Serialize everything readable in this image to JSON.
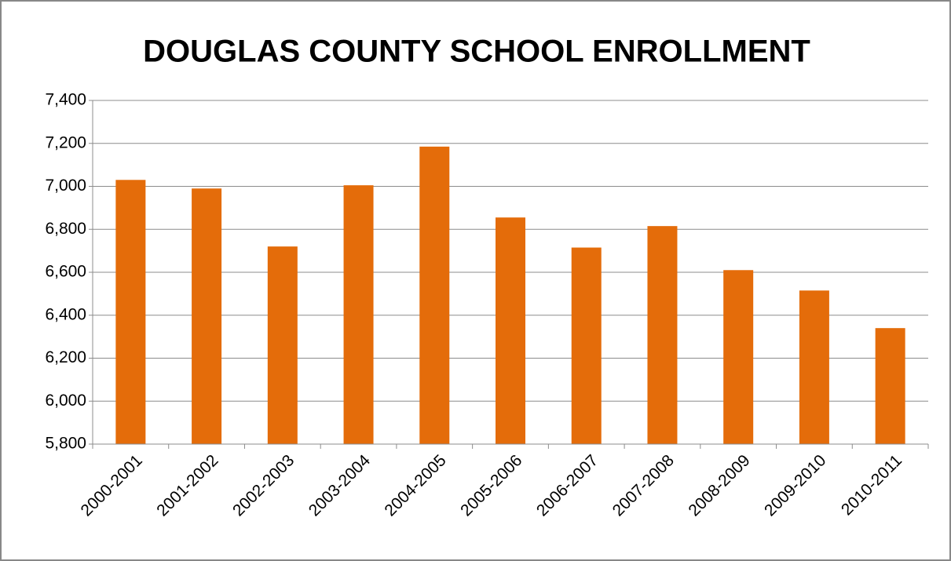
{
  "chart_data": {
    "type": "bar",
    "title": "DOUGLAS COUNTY SCHOOL ENROLLMENT",
    "categories": [
      "2000-2001",
      "2001-2002",
      "2002-2003",
      "2003-2004",
      "2004-2005",
      "2005-2006",
      "2006-2007",
      "2007-2008",
      "2008-2009",
      "2009-2010",
      "2010-2011"
    ],
    "values": [
      7030,
      6990,
      6720,
      7005,
      7185,
      6855,
      6715,
      6815,
      6610,
      6515,
      6340
    ],
    "color": "#e46c0a",
    "ylim": [
      5800,
      7400
    ],
    "yticks": [
      {
        "value": 5800,
        "label": "5,800"
      },
      {
        "value": 6000,
        "label": "6,000"
      },
      {
        "value": 6200,
        "label": "6,200"
      },
      {
        "value": 6400,
        "label": "6,400"
      },
      {
        "value": 6600,
        "label": "6,600"
      },
      {
        "value": 6800,
        "label": "6,800"
      },
      {
        "value": 7000,
        "label": "7,000"
      },
      {
        "value": 7200,
        "label": "7,200"
      },
      {
        "value": 7400,
        "label": "7,400"
      }
    ],
    "grid": true
  }
}
